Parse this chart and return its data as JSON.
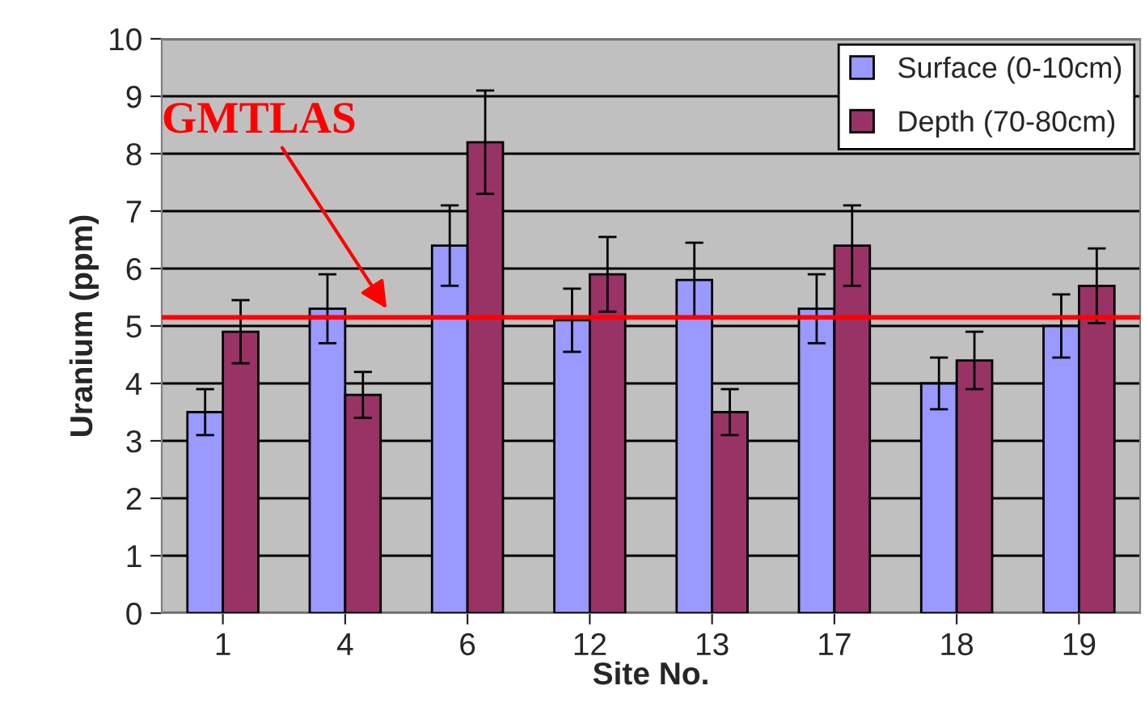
{
  "chart_data": {
    "type": "bar",
    "xlabel": "Site No.",
    "ylabel": "Uranium (ppm)",
    "categories": [
      "1",
      "4",
      "6",
      "12",
      "13",
      "17",
      "18",
      "19"
    ],
    "series": [
      {
        "name": "Surface (0-10cm)",
        "color": "#9999ff",
        "values": [
          3.5,
          5.3,
          6.4,
          5.1,
          5.8,
          5.3,
          4.0,
          5.0
        ],
        "errors": [
          0.4,
          0.6,
          0.7,
          0.55,
          0.65,
          0.6,
          0.45,
          0.55
        ]
      },
      {
        "name": "Depth (70-80cm)",
        "color": "#993366",
        "values": [
          4.9,
          3.8,
          8.2,
          5.9,
          3.5,
          6.4,
          4.4,
          5.7
        ],
        "errors": [
          0.55,
          0.4,
          0.9,
          0.65,
          0.4,
          0.7,
          0.5,
          0.65
        ]
      }
    ],
    "ylim": [
      0,
      10
    ],
    "yticks": [
      0,
      1,
      2,
      3,
      4,
      5,
      6,
      7,
      8,
      9,
      10
    ],
    "ref_lines": [
      {
        "axis": "y",
        "value": 5.15,
        "label": "GMTLAS",
        "color": "#ff0000"
      }
    ],
    "grid": "y",
    "legend": "top right"
  }
}
